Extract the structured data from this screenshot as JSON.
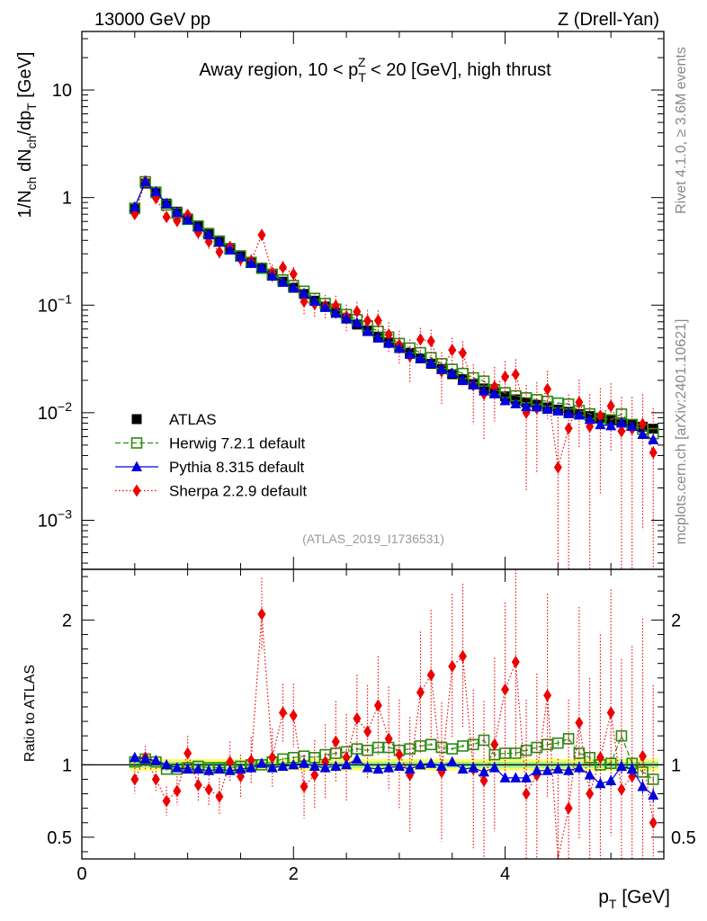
{
  "header": {
    "energy_label": "13000 GeV pp",
    "process_label": "Z (Drell-Yan)"
  },
  "side_labels": {
    "rivet": "Rivet 4.1.0, ≥ 3.6M events",
    "mcplots": "mcplots.cern.ch [arXiv:2401.10621]"
  },
  "chart_data": {
    "type": "scatter",
    "title": "Away region, 10 < p_T^Z < 20 [GeV], high thrust",
    "title_parts": {
      "pre": "Away region, 10 < p",
      "sup": "Z",
      "sub": "T",
      "post": " < 20 [GeV], high thrust"
    },
    "analysis_tag": "(ATLAS_2019_I1736531)",
    "xlabel": "p_T [GeV]",
    "xlabel_parts": {
      "main": "p",
      "sub": "T",
      "post": " [GeV]"
    },
    "ylabel_parts": {
      "a": "1/N",
      "b": "ch",
      "c": " dN",
      "d": "ch",
      "e": "/dp",
      "f": "T",
      "g": " [GeV]"
    },
    "ylabel": "1/N_ch dN_ch/dp_T [GeV]",
    "ratio_ylabel": "Ratio to ATLAS",
    "xlim": [
      0,
      5.5
    ],
    "ylim": [
      0.00035,
      35
    ],
    "yscale": "log",
    "ratio_ylim": [
      0.35,
      2.35
    ],
    "x_ticks": [
      0,
      2,
      4
    ],
    "x_tick_labels": [
      "0",
      "2",
      "4"
    ],
    "y_ticks": [
      {
        "value": 10,
        "main": "10",
        "exp": ""
      },
      {
        "value": 1,
        "main": "1",
        "exp": ""
      },
      {
        "value": 0.1,
        "main": "10",
        "exp": "−1"
      },
      {
        "value": 0.01,
        "main": "10",
        "exp": "−2"
      },
      {
        "value": 0.001,
        "main": "10",
        "exp": "−3"
      }
    ],
    "ratio_ticks": [
      {
        "value": 2,
        "label": "2"
      },
      {
        "value": 1,
        "label": "1"
      },
      {
        "value": 0.5,
        "label": "0.5"
      }
    ],
    "legend": [
      {
        "name": "ATLAS",
        "marker": "square",
        "color": "#000000",
        "line": "none"
      },
      {
        "name": "Herwig 7.2.1 default",
        "marker": "open-square",
        "color": "#2a8a14",
        "line": "dashed"
      },
      {
        "name": "Pythia 8.315 default",
        "marker": "triangle",
        "color": "#0000dd",
        "line": "solid"
      },
      {
        "name": "Sherpa 2.2.9 default",
        "marker": "diamond",
        "color": "#ee0000",
        "line": "dotted"
      }
    ],
    "x": [
      0.5,
      0.6,
      0.7,
      0.8,
      0.9,
      1.0,
      1.1,
      1.2,
      1.3,
      1.4,
      1.5,
      1.6,
      1.7,
      1.8,
      1.9,
      2.0,
      2.1,
      2.2,
      2.3,
      2.4,
      2.5,
      2.6,
      2.7,
      2.8,
      2.9,
      3.0,
      3.1,
      3.2,
      3.3,
      3.4,
      3.5,
      3.6,
      3.7,
      3.8,
      3.9,
      4.0,
      4.1,
      4.2,
      4.3,
      4.4,
      4.5,
      4.6,
      4.7,
      4.8,
      4.9,
      5.0,
      5.1,
      5.2,
      5.3,
      5.4
    ],
    "data": {
      "name": "ATLAS",
      "values": [
        0.78,
        1.35,
        1.1,
        0.88,
        0.74,
        0.64,
        0.55,
        0.47,
        0.4,
        0.34,
        0.29,
        0.25,
        0.22,
        0.19,
        0.165,
        0.145,
        0.127,
        0.11,
        0.097,
        0.085,
        0.075,
        0.066,
        0.058,
        0.051,
        0.045,
        0.04,
        0.036,
        0.032,
        0.0285,
        0.0255,
        0.0228,
        0.0205,
        0.0185,
        0.0168,
        0.0153,
        0.0142,
        0.0133,
        0.0125,
        0.0118,
        0.0112,
        0.0107,
        0.0102,
        0.0097,
        0.0093,
        0.0089,
        0.0085,
        0.0081,
        0.0077,
        0.0074,
        0.0071
      ]
    },
    "series": [
      {
        "name": "Herwig 7.2.1 default",
        "ratio": [
          1.02,
          1.04,
          1.02,
          0.97,
          0.97,
          0.98,
          0.99,
          0.98,
          0.98,
          0.98,
          0.99,
          1.0,
          1.0,
          1.02,
          1.04,
          1.05,
          1.06,
          1.05,
          1.07,
          1.08,
          1.09,
          1.11,
          1.1,
          1.12,
          1.12,
          1.1,
          1.11,
          1.13,
          1.14,
          1.12,
          1.11,
          1.13,
          1.14,
          1.17,
          1.07,
          1.08,
          1.08,
          1.1,
          1.12,
          1.14,
          1.15,
          1.18,
          1.08,
          1.05,
          1.0,
          1.01,
          1.2,
          1.01,
          0.95,
          0.9
        ],
        "err": [
          0.01,
          0.01,
          0.01,
          0.01,
          0.01,
          0.01,
          0.01,
          0.01,
          0.01,
          0.01,
          0.01,
          0.01,
          0.01,
          0.01,
          0.01,
          0.01,
          0.01,
          0.01,
          0.01,
          0.01,
          0.01,
          0.01,
          0.01,
          0.01,
          0.01,
          0.01,
          0.01,
          0.01,
          0.01,
          0.01,
          0.01,
          0.01,
          0.01,
          0.02,
          0.02,
          0.02,
          0.02,
          0.02,
          0.02,
          0.02,
          0.02,
          0.02,
          0.02,
          0.02,
          0.02,
          0.02,
          0.02,
          0.02,
          0.02,
          0.02
        ]
      },
      {
        "name": "Pythia 8.315 default",
        "ratio": [
          1.05,
          1.04,
          1.03,
          1.0,
          0.98,
          0.97,
          0.97,
          0.96,
          0.97,
          0.96,
          0.97,
          0.98,
          1.01,
          0.98,
          0.99,
          1.0,
          1.01,
          0.99,
          0.98,
          0.99,
          1.0,
          1.04,
          0.98,
          0.97,
          0.98,
          0.99,
          0.97,
          1.0,
          1.01,
          0.99,
          1.02,
          0.97,
          0.98,
          0.95,
          0.98,
          0.91,
          0.91,
          0.91,
          0.96,
          0.96,
          0.97,
          0.96,
          0.98,
          0.93,
          0.87,
          0.89,
          0.99,
          0.97,
          0.85,
          0.79
        ],
        "err": [
          0.01,
          0.01,
          0.01,
          0.01,
          0.01,
          0.01,
          0.01,
          0.01,
          0.01,
          0.01,
          0.01,
          0.01,
          0.01,
          0.01,
          0.01,
          0.01,
          0.01,
          0.01,
          0.01,
          0.01,
          0.01,
          0.01,
          0.01,
          0.02,
          0.02,
          0.02,
          0.02,
          0.02,
          0.02,
          0.02,
          0.02,
          0.02,
          0.02,
          0.03,
          0.03,
          0.03,
          0.03,
          0.03,
          0.03,
          0.03,
          0.03,
          0.03,
          0.04,
          0.04,
          0.04,
          0.04,
          0.05,
          0.05,
          0.05,
          0.05
        ]
      },
      {
        "name": "Sherpa 2.2.9 default",
        "ratio": [
          0.9,
          1.05,
          0.9,
          0.75,
          0.82,
          1.08,
          0.86,
          0.83,
          0.78,
          1.02,
          0.92,
          1.03,
          2.04,
          1.05,
          1.36,
          1.34,
          0.85,
          0.93,
          1.02,
          1.16,
          1.05,
          1.32,
          1.23,
          1.41,
          1.18,
          1.07,
          0.93,
          1.5,
          1.62,
          0.95,
          1.68,
          1.75,
          0.97,
          0.89,
          1.14,
          1.52,
          1.71,
          0.8,
          0.93,
          1.48,
          0.29,
          0.7,
          1.29,
          0.8,
          1.05,
          1.36,
          0.83,
          0.92,
          1.06,
          0.6
        ],
        "err": [
          0.1,
          0.08,
          0.08,
          0.1,
          0.1,
          0.12,
          0.12,
          0.12,
          0.13,
          0.14,
          0.15,
          0.16,
          0.25,
          0.2,
          0.2,
          0.22,
          0.22,
          0.24,
          0.26,
          0.28,
          0.3,
          0.3,
          0.32,
          0.34,
          0.36,
          0.38,
          0.4,
          0.42,
          0.45,
          0.48,
          0.5,
          0.5,
          0.55,
          0.55,
          0.6,
          0.6,
          0.65,
          0.65,
          0.7,
          0.7,
          0.75,
          0.75,
          0.8,
          0.8,
          0.85,
          0.85,
          0.9,
          0.9,
          0.95,
          0.95
        ]
      }
    ],
    "uncertainty_band": {
      "inner": 0.02,
      "outer": 0.04,
      "colors": [
        "#ffff66",
        "#99ee99"
      ]
    }
  }
}
